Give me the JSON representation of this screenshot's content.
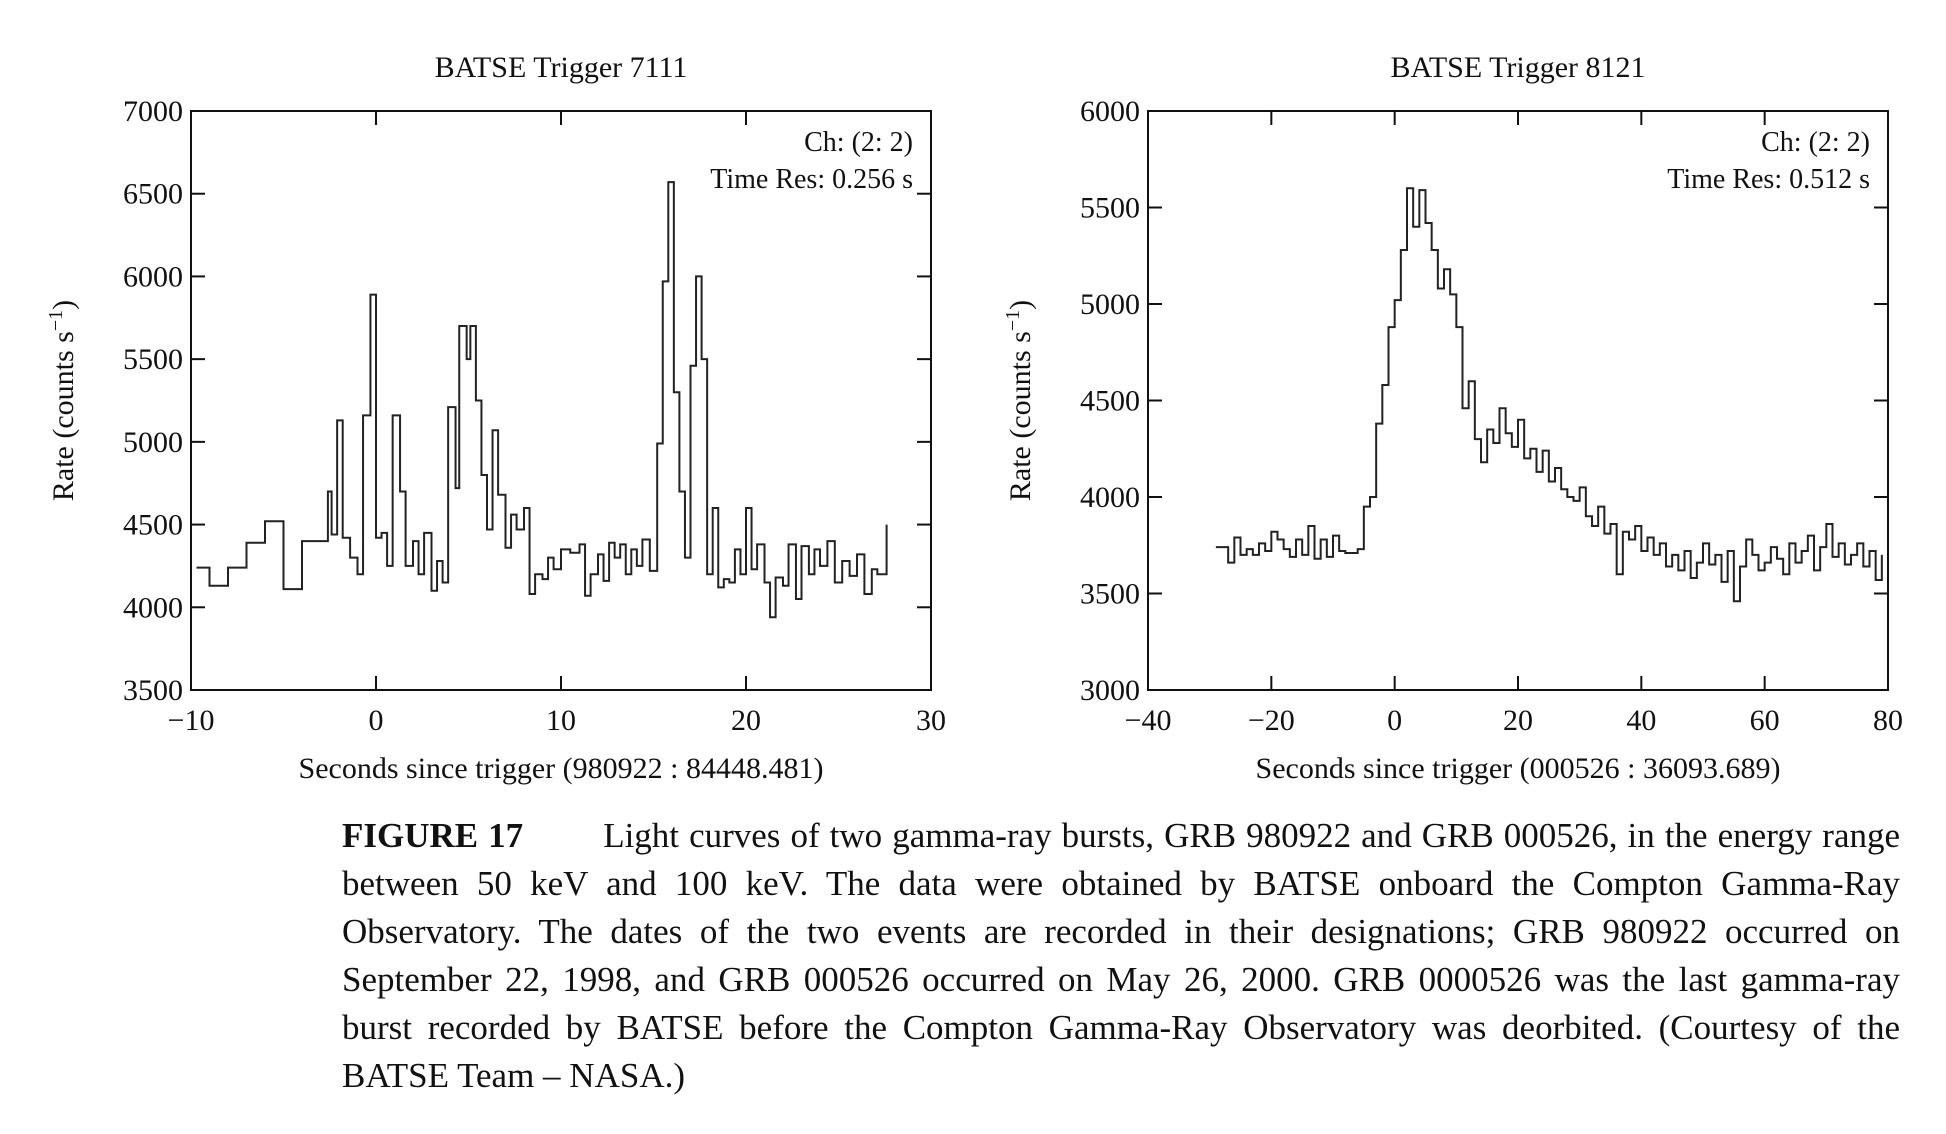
{
  "chart_data": [
    {
      "type": "step",
      "title": "BATSE Trigger 7111",
      "xlabel": "Seconds since trigger (980922 : 84448.481)",
      "ylabel": {
        "text": "Rate (counts s",
        "superscript": "−1",
        "suffix": ")"
      },
      "annotations": [
        "Ch: (2: 2)",
        "Time Res: 0.256 s"
      ],
      "color": "#222222",
      "xlim": [
        -10,
        30
      ],
      "xticks": [
        {
          "value": -10,
          "label": "−10"
        },
        0,
        10,
        20,
        30
      ],
      "ylim": [
        3500,
        7000
      ],
      "yticks": [
        3500,
        4000,
        4500,
        5000,
        5500,
        6000,
        6500,
        7000
      ],
      "x": [
        -9.7,
        -9,
        -8,
        -7,
        -6,
        -5,
        -4,
        -2.6,
        -2.4,
        -2.1,
        -1.8,
        -1.4,
        -1.0,
        -0.7,
        -0.3,
        0.0,
        0.3,
        0.6,
        0.9,
        1.3,
        1.6,
        2.0,
        2.3,
        2.6,
        3.0,
        3.3,
        3.6,
        3.9,
        4.3,
        4.5,
        4.9,
        5.1,
        5.4,
        5.7,
        6.0,
        6.3,
        6.6,
        7.0,
        7.3,
        7.6,
        8.0,
        8.3,
        8.6,
        9.0,
        9.3,
        9.6,
        10.0,
        10.5,
        11.0,
        11.3,
        11.6,
        12.0,
        12.3,
        12.6,
        12.9,
        13.2,
        13.5,
        13.8,
        14.1,
        14.4,
        14.8,
        15.2,
        15.5,
        15.8,
        16.1,
        16.4,
        16.7,
        17.0,
        17.3,
        17.6,
        17.9,
        18.2,
        18.5,
        18.8,
        19.1,
        19.4,
        19.7,
        20.0,
        20.3,
        20.6,
        21.0,
        21.3,
        21.6,
        22.0,
        22.3,
        22.7,
        23.0,
        23.4,
        23.7,
        24.0,
        24.4,
        24.8,
        25.2,
        25.6,
        26.0,
        26.4,
        26.8,
        27.1,
        27.6
      ],
      "values": [
        4240,
        4130,
        4240,
        4390,
        4520,
        4110,
        4400,
        4700,
        4440,
        5130,
        4420,
        4300,
        4200,
        5160,
        5890,
        4420,
        4450,
        4250,
        5160,
        4700,
        4250,
        4400,
        4200,
        4450,
        4100,
        4280,
        4150,
        5210,
        4720,
        5700,
        5500,
        5700,
        5250,
        4800,
        4470,
        5070,
        4680,
        4360,
        4560,
        4470,
        4600,
        4080,
        4200,
        4170,
        4300,
        4230,
        4350,
        4330,
        4380,
        4070,
        4200,
        4320,
        4160,
        4390,
        4300,
        4380,
        4200,
        4350,
        4250,
        4410,
        4220,
        4990,
        5970,
        6570,
        5300,
        4700,
        4300,
        5460,
        6000,
        5500,
        4200,
        4600,
        4120,
        4170,
        4150,
        4350,
        4200,
        4600,
        4230,
        4380,
        4150,
        3940,
        4180,
        4130,
        4380,
        4050,
        4370,
        4200,
        4350,
        4250,
        4400,
        4150,
        4280,
        4190,
        4320,
        4080,
        4230,
        4200,
        4500
      ]
    },
    {
      "type": "step",
      "title": "BATSE Trigger 8121",
      "xlabel": "Seconds since trigger (000526 : 36093.689)",
      "ylabel": {
        "text": "Rate (counts s",
        "superscript": "−1",
        "suffix": ")"
      },
      "annotations": [
        "Ch: (2: 2)",
        "Time Res: 0.512 s"
      ],
      "color": "#222222",
      "xlim": [
        -40,
        80
      ],
      "xticks": [
        {
          "value": -40,
          "label": "−40"
        },
        {
          "value": -20,
          "label": "−20"
        },
        0,
        20,
        40,
        60,
        80
      ],
      "ylim": [
        3000,
        6000
      ],
      "yticks": [
        3000,
        3500,
        4000,
        4500,
        5000,
        5500,
        6000
      ],
      "x": [
        -29,
        -28,
        -27,
        -26,
        -25,
        -24,
        -23,
        -22,
        -21,
        -20,
        -19,
        -18,
        -17,
        -16,
        -15,
        -14,
        -13,
        -12,
        -11,
        -10,
        -9,
        -8,
        -7,
        -6,
        -5,
        -4,
        -3,
        -2,
        -1,
        0,
        1,
        2,
        3,
        4,
        5,
        6,
        7,
        8,
        9,
        10,
        11,
        12,
        13,
        14,
        15,
        16,
        17,
        18,
        19,
        20,
        21,
        22,
        23,
        24,
        25,
        26,
        27,
        28,
        29,
        30,
        31,
        32,
        33,
        34,
        35,
        36,
        37,
        38,
        39,
        40,
        41,
        42,
        43,
        44,
        45,
        46,
        47,
        48,
        49,
        50,
        51,
        52,
        53,
        54,
        55,
        56,
        57,
        58,
        59,
        60,
        61,
        62,
        63,
        64,
        65,
        66,
        67,
        68,
        69,
        70,
        71,
        72,
        73,
        74,
        75,
        76,
        77,
        78,
        79
      ],
      "values": [
        3740,
        3740,
        3660,
        3790,
        3700,
        3730,
        3700,
        3760,
        3720,
        3820,
        3780,
        3730,
        3690,
        3780,
        3700,
        3850,
        3680,
        3780,
        3690,
        3800,
        3720,
        3710,
        3710,
        3730,
        3950,
        4000,
        4380,
        4580,
        4880,
        5020,
        5280,
        5600,
        5400,
        5590,
        5420,
        5280,
        5080,
        5180,
        5050,
        4880,
        4460,
        4600,
        4300,
        4180,
        4350,
        4280,
        4460,
        4330,
        4260,
        4400,
        4200,
        4250,
        4130,
        4240,
        4080,
        4150,
        4040,
        4000,
        3980,
        4050,
        3900,
        3850,
        3950,
        3810,
        3860,
        3600,
        3820,
        3780,
        3850,
        3720,
        3790,
        3700,
        3760,
        3640,
        3700,
        3620,
        3720,
        3580,
        3660,
        3760,
        3650,
        3700,
        3560,
        3720,
        3460,
        3640,
        3780,
        3700,
        3620,
        3660,
        3740,
        3680,
        3600,
        3760,
        3660,
        3720,
        3800,
        3620,
        3740,
        3860,
        3690,
        3760,
        3650,
        3700,
        3760,
        3640,
        3720,
        3570,
        3700
      ]
    }
  ],
  "caption": {
    "label": "FIGURE 17",
    "text": "Light curves of two gamma-ray bursts, GRB 980922 and GRB 000526, in the energy range between 50 keV and 100 keV. The data were obtained by BATSE onboard the Compton Gamma-Ray Observatory. The dates of the two events are recorded in their designations; GRB 980922 occurred on September 22, 1998, and GRB 000526 occurred on May 26, 2000. GRB 0000526 was the last gamma-ray burst recorded by BATSE before the Compton Gamma-Ray Observatory was deorbited. (Courtesy of the BATSE Team – NASA.)"
  }
}
